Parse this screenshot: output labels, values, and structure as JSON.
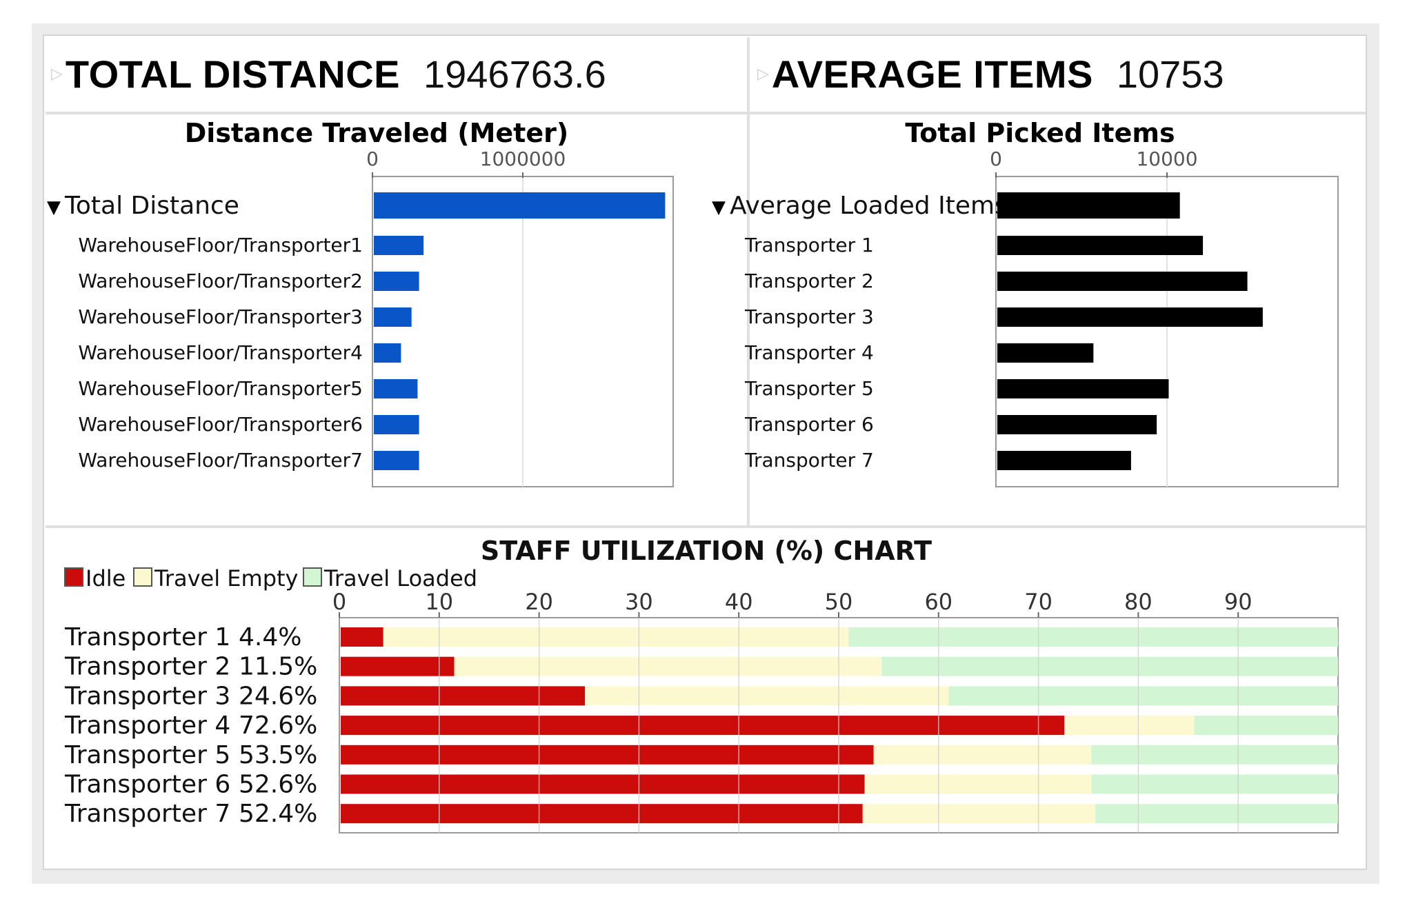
{
  "kpis": [
    {
      "label": "TOTAL DISTANCE",
      "value": "1946763.6"
    },
    {
      "label": "AVERAGE ITEMS",
      "value": "10753"
    }
  ],
  "colors": {
    "distance_bar": "#0a56c9",
    "items_bar": "#000000",
    "idle": "#cc0b0b",
    "travel_empty": "#fcf8cf",
    "travel_loaded": "#d2f6d4"
  },
  "chart_data": [
    {
      "type": "bar",
      "orientation": "horizontal",
      "title": "Distance Traveled (Meter)",
      "tick_labels": [
        "0",
        "1000000"
      ],
      "xlim": [
        0,
        2000000
      ],
      "group_label": "Total Distance",
      "categories": [
        "WarehouseFloor/Transporter1",
        "WarehouseFloor/Transporter2",
        "WarehouseFloor/Transporter3",
        "WarehouseFloor/Transporter4",
        "WarehouseFloor/Transporter5",
        "WarehouseFloor/Transporter6",
        "WarehouseFloor/Transporter7"
      ],
      "total": 1946763.6,
      "values": [
        340000,
        310000,
        260000,
        190000,
        300000,
        310000,
        310000
      ]
    },
    {
      "type": "bar",
      "orientation": "horizontal",
      "title": "Total Picked Items",
      "tick_labels": [
        "0",
        "10000"
      ],
      "xlim": [
        0,
        20000
      ],
      "group_label": "Average Loaded Items",
      "categories": [
        "Transporter 1",
        "Transporter 2",
        "Transporter 3",
        "Transporter 4",
        "Transporter 5",
        "Transporter 6",
        "Transporter 7"
      ],
      "total": 10753,
      "values": [
        12100,
        14700,
        15600,
        5700,
        10100,
        9400,
        7900
      ]
    },
    {
      "type": "bar",
      "orientation": "horizontal",
      "stacked": true,
      "title": "STAFF UTILIZATION (%) CHART",
      "tick_labels": [
        "0",
        "10",
        "20",
        "30",
        "40",
        "50",
        "60",
        "70",
        "80",
        "90"
      ],
      "xlim": [
        0,
        100
      ],
      "legend": [
        "Idle",
        "Travel Empty",
        "Travel Loaded"
      ],
      "legend_position": "top-left",
      "categories": [
        "Transporter 1",
        "Transporter 2",
        "Transporter 3",
        "Transporter 4",
        "Transporter 5",
        "Transporter 6",
        "Transporter 7"
      ],
      "value_labels": [
        "4.4%",
        "11.5%",
        "24.6%",
        "72.6%",
        "53.5%",
        "52.6%",
        "52.4%"
      ],
      "series": [
        {
          "name": "Idle",
          "values": [
            4.4,
            11.5,
            24.6,
            72.6,
            53.5,
            52.6,
            52.4
          ]
        },
        {
          "name": "Travel Empty",
          "values": [
            46.6,
            42.8,
            36.4,
            13.0,
            21.8,
            22.7,
            23.3
          ]
        },
        {
          "name": "Travel Loaded",
          "values": [
            49.0,
            45.7,
            39.0,
            14.4,
            24.7,
            24.7,
            24.3
          ]
        }
      ]
    }
  ]
}
